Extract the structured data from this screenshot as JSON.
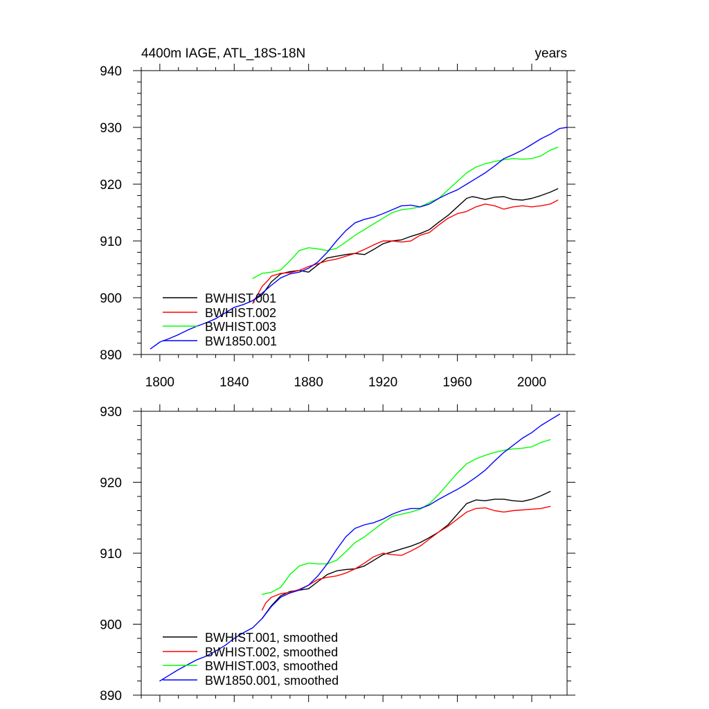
{
  "chart_data": [
    {
      "type": "line",
      "title": "4400m IAGE, ATL_18S-18N",
      "units": "years",
      "xlim": [
        1790,
        2019
      ],
      "ylim": [
        890,
        940
      ],
      "xticks": [
        1800,
        1840,
        1880,
        1920,
        1960,
        2000
      ],
      "xtick_labels": [
        "1800",
        "1840",
        "1880",
        "1920",
        "1960",
        "2000"
      ],
      "yticks": [
        890,
        900,
        910,
        920,
        930,
        940
      ],
      "ytick_labels": [
        "890",
        "900",
        "910",
        "920",
        "930",
        "940"
      ],
      "legend_position": "bottom-left",
      "series": [
        {
          "name": "BWHIST.001",
          "color": "#000000",
          "x": [
            1850,
            1855,
            1860,
            1865,
            1870,
            1875,
            1880,
            1885,
            1890,
            1895,
            1900,
            1905,
            1910,
            1915,
            1920,
            1925,
            1930,
            1935,
            1940,
            1945,
            1950,
            1955,
            1960,
            1965,
            1968,
            1970,
            1975,
            1980,
            1985,
            1990,
            1995,
            2000,
            2005,
            2010,
            2014
          ],
          "y": [
            899.5,
            900.5,
            902.8,
            904.2,
            904.6,
            904.8,
            904.5,
            905.8,
            907.0,
            907.3,
            907.6,
            907.8,
            907.6,
            908.5,
            909.5,
            910.0,
            910.2,
            910.8,
            911.3,
            912.0,
            913.3,
            914.5,
            916.0,
            917.5,
            917.8,
            917.7,
            917.3,
            917.7,
            917.8,
            917.3,
            917.2,
            917.5,
            918.0,
            918.6,
            919.2
          ]
        },
        {
          "name": "BWHIST.002",
          "color": "#ff0000",
          "x": [
            1850,
            1852,
            1855,
            1858,
            1860,
            1865,
            1870,
            1875,
            1880,
            1885,
            1890,
            1895,
            1900,
            1905,
            1910,
            1915,
            1920,
            1925,
            1930,
            1935,
            1940,
            1945,
            1950,
            1955,
            1960,
            1965,
            1970,
            1975,
            1980,
            1985,
            1990,
            1995,
            2000,
            2005,
            2010,
            2014
          ],
          "y": [
            899.0,
            900.2,
            902.0,
            903.0,
            903.8,
            904.3,
            904.4,
            904.8,
            905.5,
            906.0,
            906.5,
            906.8,
            907.3,
            907.8,
            908.5,
            909.3,
            910.0,
            910.0,
            909.8,
            910.0,
            911.0,
            911.5,
            912.8,
            914.0,
            914.8,
            915.2,
            916.0,
            916.5,
            916.2,
            915.6,
            916.0,
            916.2,
            916.0,
            916.2,
            916.5,
            917.2
          ]
        },
        {
          "name": "BWHIST.003",
          "color": "#00ff00",
          "x": [
            1850,
            1855,
            1860,
            1865,
            1870,
            1875,
            1880,
            1885,
            1890,
            1895,
            1900,
            1905,
            1910,
            1915,
            1920,
            1925,
            1930,
            1935,
            1940,
            1945,
            1950,
            1955,
            1960,
            1965,
            1970,
            1975,
            1980,
            1985,
            1990,
            1995,
            2000,
            2005,
            2010,
            2014
          ],
          "y": [
            903.4,
            904.3,
            904.5,
            904.9,
            906.5,
            908.3,
            908.8,
            908.6,
            908.3,
            908.7,
            909.8,
            911.0,
            912.0,
            913.0,
            914.0,
            915.0,
            915.5,
            915.7,
            916.0,
            916.8,
            917.5,
            919.0,
            920.5,
            922.0,
            923.0,
            923.6,
            924.0,
            924.3,
            924.5,
            924.4,
            924.5,
            925.0,
            926.0,
            926.5
          ]
        },
        {
          "name": "BW1850.001",
          "color": "#0000ff",
          "x": [
            1795,
            1800,
            1805,
            1810,
            1815,
            1820,
            1825,
            1830,
            1835,
            1840,
            1845,
            1850,
            1855,
            1860,
            1865,
            1870,
            1875,
            1880,
            1885,
            1890,
            1895,
            1900,
            1905,
            1910,
            1915,
            1920,
            1925,
            1930,
            1935,
            1940,
            1945,
            1950,
            1955,
            1960,
            1965,
            1970,
            1975,
            1980,
            1985,
            1990,
            1995,
            2000,
            2005,
            2010,
            2015,
            2019
          ],
          "y": [
            891.0,
            892.2,
            892.8,
            893.5,
            894.3,
            895.0,
            895.6,
            896.3,
            897.3,
            898.3,
            898.8,
            899.5,
            900.8,
            902.2,
            903.5,
            904.2,
            904.5,
            905.2,
            906.3,
            908.0,
            910.0,
            911.8,
            913.2,
            913.8,
            914.2,
            914.8,
            915.5,
            916.2,
            916.3,
            916.0,
            916.5,
            917.5,
            918.3,
            919.0,
            920.0,
            921.0,
            922.0,
            923.2,
            924.5,
            925.2,
            926.0,
            927.0,
            928.0,
            928.8,
            929.8,
            930.0
          ]
        }
      ]
    },
    {
      "type": "line",
      "title": "",
      "xlim": [
        1790,
        2019
      ],
      "ylim": [
        890,
        930
      ],
      "xticks": [
        1800,
        1840,
        1880,
        1920,
        1960,
        2000
      ],
      "yticks": [
        890,
        900,
        910,
        920,
        930
      ],
      "ytick_labels": [
        "890",
        "900",
        "910",
        "920",
        "930"
      ],
      "legend_position": "bottom-left",
      "series": [
        {
          "name": "BWHIST.001, smoothed",
          "color": "#000000",
          "x": [
            1855,
            1860,
            1865,
            1870,
            1875,
            1880,
            1885,
            1890,
            1895,
            1900,
            1905,
            1910,
            1915,
            1920,
            1925,
            1930,
            1935,
            1940,
            1945,
            1950,
            1955,
            1960,
            1965,
            1970,
            1975,
            1980,
            1985,
            1990,
            1995,
            2000,
            2005,
            2010
          ],
          "y": [
            900.8,
            902.6,
            904.0,
            904.6,
            904.8,
            905.0,
            906.0,
            907.0,
            907.5,
            907.7,
            907.8,
            908.2,
            909.0,
            909.8,
            910.2,
            910.6,
            911.0,
            911.5,
            912.2,
            913.0,
            914.0,
            915.5,
            917.0,
            917.5,
            917.4,
            917.6,
            917.6,
            917.4,
            917.3,
            917.6,
            918.1,
            918.7
          ]
        },
        {
          "name": "BWHIST.002, smoothed",
          "color": "#ff0000",
          "x": [
            1855,
            1857,
            1860,
            1865,
            1870,
            1875,
            1880,
            1885,
            1890,
            1895,
            1900,
            1905,
            1910,
            1915,
            1920,
            1925,
            1930,
            1935,
            1940,
            1945,
            1950,
            1955,
            1960,
            1965,
            1970,
            1975,
            1980,
            1985,
            1990,
            1995,
            2000,
            2005,
            2010
          ],
          "y": [
            902.0,
            903.0,
            903.8,
            904.3,
            904.5,
            904.9,
            905.5,
            906.3,
            906.6,
            906.8,
            907.2,
            907.8,
            908.6,
            909.5,
            910.0,
            909.8,
            909.7,
            910.3,
            911.0,
            912.0,
            913.0,
            913.8,
            914.8,
            915.8,
            916.3,
            916.4,
            916.0,
            915.8,
            916.0,
            916.1,
            916.2,
            916.3,
            916.6
          ]
        },
        {
          "name": "BWHIST.003, smoothed",
          "color": "#00ff00",
          "x": [
            1855,
            1860,
            1865,
            1870,
            1875,
            1880,
            1885,
            1890,
            1895,
            1900,
            1905,
            1910,
            1915,
            1920,
            1925,
            1930,
            1935,
            1940,
            1945,
            1950,
            1955,
            1960,
            1965,
            1970,
            1975,
            1980,
            1985,
            1990,
            1995,
            2000,
            2005,
            2010
          ],
          "y": [
            904.2,
            904.5,
            905.2,
            907.0,
            908.2,
            908.6,
            908.5,
            908.5,
            909.0,
            910.2,
            911.5,
            912.3,
            913.3,
            914.3,
            915.2,
            915.5,
            915.8,
            916.2,
            917.0,
            918.3,
            919.8,
            921.3,
            922.6,
            923.3,
            923.8,
            924.2,
            924.5,
            924.7,
            924.8,
            925.0,
            925.6,
            926.0
          ]
        },
        {
          "name": "BW1850.001, smoothed",
          "color": "#0000ff",
          "x": [
            1800,
            1805,
            1810,
            1815,
            1820,
            1825,
            1830,
            1835,
            1840,
            1845,
            1850,
            1855,
            1860,
            1865,
            1870,
            1875,
            1880,
            1885,
            1890,
            1895,
            1900,
            1905,
            1910,
            1915,
            1920,
            1925,
            1930,
            1935,
            1940,
            1945,
            1950,
            1955,
            1960,
            1965,
            1970,
            1975,
            1980,
            1985,
            1990,
            1995,
            2000,
            2005,
            2010,
            2015
          ],
          "y": [
            892.0,
            892.8,
            893.6,
            894.3,
            895.0,
            895.5,
            896.2,
            897.0,
            898.0,
            898.8,
            899.5,
            900.8,
            902.5,
            903.8,
            904.4,
            904.8,
            905.5,
            906.8,
            908.5,
            910.5,
            912.3,
            913.5,
            914.0,
            914.3,
            914.8,
            915.5,
            916.0,
            916.3,
            916.3,
            916.8,
            917.6,
            918.3,
            919.0,
            919.8,
            920.7,
            921.7,
            923.0,
            924.2,
            925.2,
            926.2,
            927.0,
            928.0,
            928.8,
            929.6
          ]
        }
      ]
    }
  ]
}
